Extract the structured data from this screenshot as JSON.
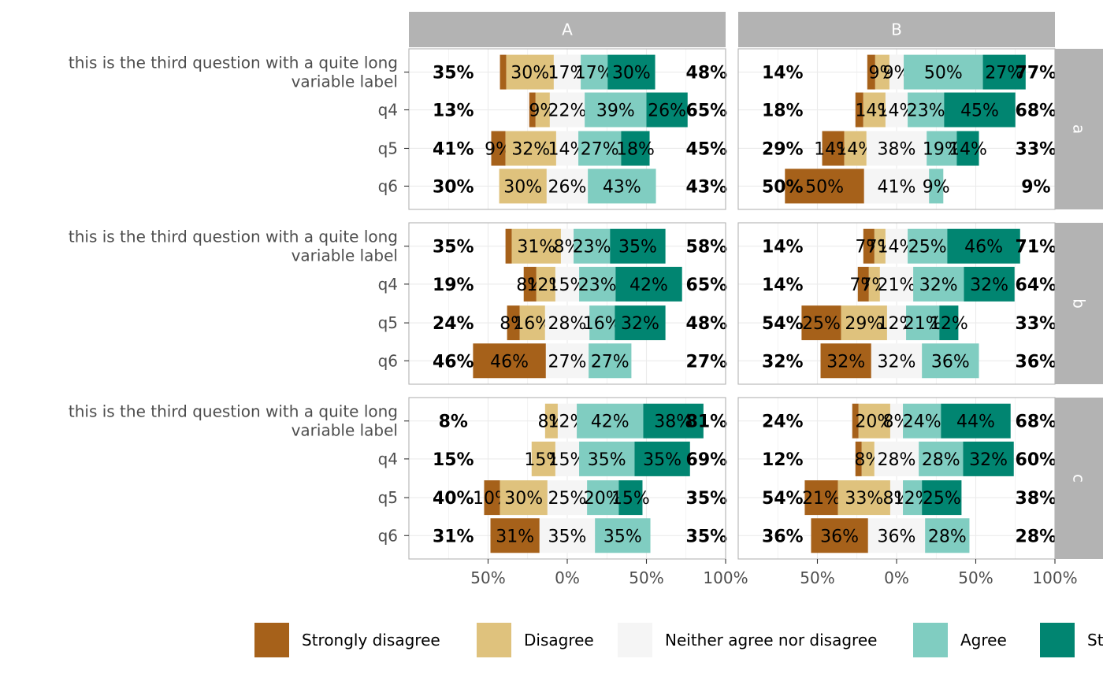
{
  "colors": {
    "strongly_disagree": "#A6611A",
    "disagree": "#DFC27D",
    "neither": "#F5F5F5",
    "agree": "#80CDC1",
    "strongly_agree": "#018571",
    "strip_bg": "#B3B3B3",
    "strip_text": "#FFFFFF",
    "panel_border": "#B3B3B3",
    "grid": "#EBEBEB",
    "axis_text": "#4D4D4D"
  },
  "chart_data": {
    "type": "bar",
    "subtype": "diverging-stacked-likert",
    "xlim": [
      -1.0,
      1.0
    ],
    "x_ticks": [
      -0.5,
      0,
      0.5,
      1.0
    ],
    "x_tick_labels": [
      "50%",
      "0%",
      "50%",
      "100%"
    ],
    "col_facets": [
      "A",
      "B"
    ],
    "row_facets": [
      "a",
      "b",
      "c"
    ],
    "questions": [
      "this is the third question with a quite long\nvariable label",
      "q4",
      "q5",
      "q6"
    ],
    "levels": [
      "Strongly disagree",
      "Disagree",
      "Neither agree nor disagree",
      "Agree",
      "Strongly agree"
    ],
    "legend_position": "bottom",
    "panels": [
      {
        "row": "a",
        "col": "A",
        "bars": [
          {
            "values": [
              0.04,
              0.3,
              0.17,
              0.17,
              0.3
            ],
            "labels": [
              "",
              "30%",
              "17%",
              "17%",
              "30%"
            ],
            "low": "35%",
            "high": "48%"
          },
          {
            "values": [
              0.04,
              0.09,
              0.22,
              0.39,
              0.26
            ],
            "labels": [
              "",
              "9%",
              "22%",
              "39%",
              "26%"
            ],
            "low": "13%",
            "high": "65%"
          },
          {
            "values": [
              0.09,
              0.32,
              0.14,
              0.27,
              0.18
            ],
            "labels": [
              "9%",
              "32%",
              "14%",
              "27%",
              "18%"
            ],
            "low": "41%",
            "high": "45%"
          },
          {
            "values": [
              0.0,
              0.3,
              0.26,
              0.43,
              0.0
            ],
            "labels": [
              "",
              "30%",
              "26%",
              "43%",
              ""
            ],
            "low": "30%",
            "high": "43%"
          }
        ]
      },
      {
        "row": "a",
        "col": "B",
        "bars": [
          {
            "values": [
              0.05,
              0.09,
              0.09,
              0.5,
              0.27
            ],
            "labels": [
              "",
              "9%",
              "9%",
              "50%",
              "27%"
            ],
            "low": "14%",
            "high": "77%"
          },
          {
            "values": [
              0.05,
              0.14,
              0.14,
              0.23,
              0.45
            ],
            "labels": [
              "",
              "14%",
              "14%",
              "23%",
              "45%"
            ],
            "low": "18%",
            "high": "68%"
          },
          {
            "values": [
              0.14,
              0.14,
              0.38,
              0.19,
              0.14
            ],
            "labels": [
              "14%",
              "14%",
              "38%",
              "19%",
              "14%"
            ],
            "low": "29%",
            "high": "33%"
          },
          {
            "values": [
              0.5,
              0.0,
              0.41,
              0.09,
              0.0
            ],
            "labels": [
              "50%",
              "",
              "41%",
              "9%",
              ""
            ],
            "low": "50%",
            "high": "9%"
          }
        ]
      },
      {
        "row": "b",
        "col": "A",
        "bars": [
          {
            "values": [
              0.04,
              0.31,
              0.08,
              0.23,
              0.35
            ],
            "labels": [
              "",
              "31%",
              "8%",
              "23%",
              "35%"
            ],
            "low": "35%",
            "high": "58%"
          },
          {
            "values": [
              0.08,
              0.12,
              0.15,
              0.23,
              0.42
            ],
            "labels": [
              "8%",
              "12%",
              "15%",
              "23%",
              "42%"
            ],
            "low": "19%",
            "high": "65%"
          },
          {
            "values": [
              0.08,
              0.16,
              0.28,
              0.16,
              0.32
            ],
            "labels": [
              "8%",
              "16%",
              "28%",
              "16%",
              "32%"
            ],
            "low": "24%",
            "high": "48%"
          },
          {
            "values": [
              0.46,
              0.0,
              0.27,
              0.27,
              0.0
            ],
            "labels": [
              "46%",
              "",
              "27%",
              "27%",
              ""
            ],
            "low": "46%",
            "high": "27%"
          }
        ]
      },
      {
        "row": "b",
        "col": "B",
        "bars": [
          {
            "values": [
              0.07,
              0.07,
              0.14,
              0.25,
              0.46
            ],
            "labels": [
              "7%",
              "7%",
              "14%",
              "25%",
              "46%"
            ],
            "low": "14%",
            "high": "71%"
          },
          {
            "values": [
              0.07,
              0.07,
              0.21,
              0.32,
              0.32
            ],
            "labels": [
              "7%",
              "7%",
              "21%",
              "32%",
              "32%"
            ],
            "low": "14%",
            "high": "64%"
          },
          {
            "values": [
              0.25,
              0.29,
              0.12,
              0.21,
              0.12
            ],
            "labels": [
              "25%",
              "29%",
              "12%",
              "21%",
              "12%"
            ],
            "low": "54%",
            "high": "33%"
          },
          {
            "values": [
              0.32,
              0.0,
              0.32,
              0.36,
              0.0
            ],
            "labels": [
              "32%",
              "",
              "32%",
              "36%",
              ""
            ],
            "low": "32%",
            "high": "36%"
          }
        ]
      },
      {
        "row": "c",
        "col": "A",
        "bars": [
          {
            "values": [
              0.0,
              0.08,
              0.12,
              0.42,
              0.38
            ],
            "labels": [
              "",
              "8%",
              "12%",
              "42%",
              "38%"
            ],
            "low": "8%",
            "high": "81%"
          },
          {
            "values": [
              0.0,
              0.15,
              0.15,
              0.35,
              0.35
            ],
            "labels": [
              "",
              "15%",
              "15%",
              "35%",
              "35%"
            ],
            "low": "15%",
            "high": "69%"
          },
          {
            "values": [
              0.1,
              0.3,
              0.25,
              0.2,
              0.15
            ],
            "labels": [
              "10%",
              "30%",
              "25%",
              "20%",
              "15%"
            ],
            "low": "40%",
            "high": "35%"
          },
          {
            "values": [
              0.31,
              0.0,
              0.35,
              0.35,
              0.0
            ],
            "labels": [
              "31%",
              "",
              "35%",
              "35%",
              ""
            ],
            "low": "31%",
            "high": "35%"
          }
        ]
      },
      {
        "row": "c",
        "col": "B",
        "bars": [
          {
            "values": [
              0.04,
              0.2,
              0.08,
              0.24,
              0.44
            ],
            "labels": [
              "",
              "20%",
              "8%",
              "24%",
              "44%"
            ],
            "low": "24%",
            "high": "68%"
          },
          {
            "values": [
              0.04,
              0.08,
              0.28,
              0.28,
              0.32
            ],
            "labels": [
              "",
              "8%",
              "28%",
              "28%",
              "32%"
            ],
            "low": "12%",
            "high": "60%"
          },
          {
            "values": [
              0.21,
              0.33,
              0.08,
              0.12,
              0.25
            ],
            "labels": [
              "21%",
              "33%",
              "8%",
              "12%",
              "25%"
            ],
            "low": "54%",
            "high": "38%"
          },
          {
            "values": [
              0.36,
              0.0,
              0.36,
              0.28,
              0.0
            ],
            "labels": [
              "36%",
              "",
              "36%",
              "28%",
              ""
            ],
            "low": "36%",
            "high": "28%"
          }
        ]
      }
    ]
  }
}
